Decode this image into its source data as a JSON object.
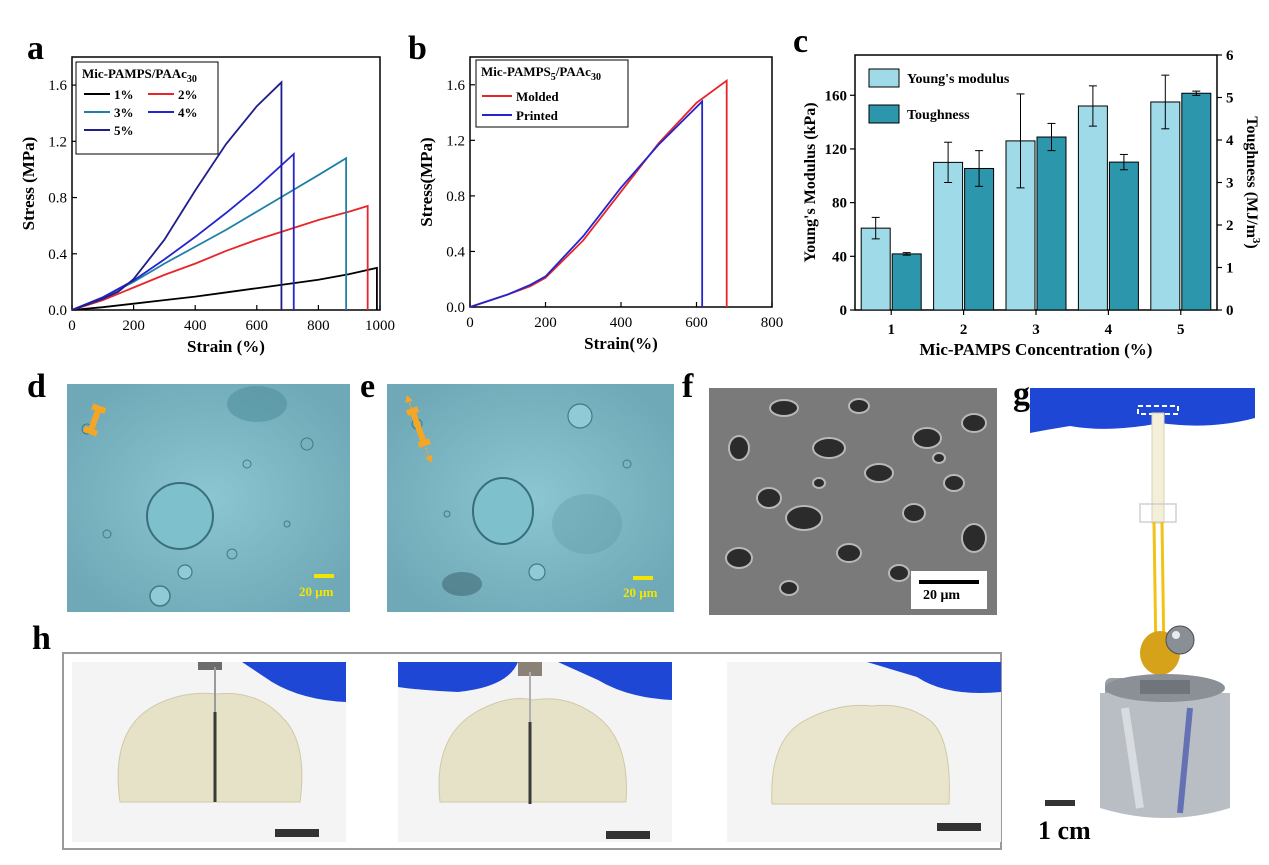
{
  "panels": {
    "a": "a",
    "b": "b",
    "c": "c",
    "d": "d",
    "e": "e",
    "f": "f",
    "g": "g",
    "h": "h"
  },
  "chart_data": [
    {
      "panel": "a",
      "type": "line",
      "xlabel": "Strain (%)",
      "ylabel": "Stress (MPa)",
      "xlim": [
        0,
        1000
      ],
      "ylim": [
        0,
        1.8
      ],
      "xticks": [
        "0",
        "200",
        "400",
        "600",
        "800",
        "1000"
      ],
      "yticks": [
        "0.0",
        "0.4",
        "0.8",
        "1.2",
        "1.6"
      ],
      "legend_title": "Mic-PAMPS/PAAc",
      "legend_title_sub": "30",
      "legend_placement": "top-left",
      "series": [
        {
          "name": "1%",
          "color": "#000000",
          "x": [
            0,
            100,
            200,
            300,
            400,
            500,
            600,
            700,
            800,
            900,
            990
          ],
          "y": [
            0,
            0.02,
            0.045,
            0.07,
            0.095,
            0.125,
            0.155,
            0.185,
            0.215,
            0.255,
            0.3
          ]
        },
        {
          "name": "2%",
          "color": "#e8252a",
          "x": [
            0,
            100,
            200,
            300,
            400,
            500,
            600,
            700,
            800,
            900,
            960
          ],
          "y": [
            0,
            0.07,
            0.16,
            0.25,
            0.33,
            0.42,
            0.5,
            0.57,
            0.64,
            0.7,
            0.74
          ]
        },
        {
          "name": "3%",
          "color": "#1f7fa8",
          "x": [
            0,
            100,
            200,
            300,
            400,
            500,
            600,
            700,
            800,
            890
          ],
          "y": [
            0,
            0.09,
            0.2,
            0.33,
            0.45,
            0.57,
            0.7,
            0.83,
            0.96,
            1.08
          ]
        },
        {
          "name": "4%",
          "color": "#2525d0",
          "x": [
            0,
            100,
            200,
            300,
            400,
            500,
            600,
            700,
            720
          ],
          "y": [
            0,
            0.09,
            0.21,
            0.36,
            0.52,
            0.69,
            0.87,
            1.07,
            1.11
          ]
        },
        {
          "name": "5%",
          "color": "#1e1e8c",
          "x": [
            0,
            100,
            150,
            200,
            300,
            400,
            500,
            600,
            680
          ],
          "y": [
            0,
            0.08,
            0.13,
            0.22,
            0.5,
            0.85,
            1.18,
            1.45,
            1.62
          ]
        }
      ]
    },
    {
      "panel": "b",
      "type": "line",
      "xlabel": "Strain(%)",
      "ylabel": "Stress(MPa)",
      "xlim": [
        0,
        800
      ],
      "ylim": [
        0,
        1.8
      ],
      "xticks": [
        "0",
        "200",
        "400",
        "600",
        "800"
      ],
      "yticks": [
        "0.0",
        "0.4",
        "0.8",
        "1.2",
        "1.6"
      ],
      "legend_title": "Mic-PAMPS",
      "legend_title_sub1": "5",
      "legend_title_mid": "/PAAc",
      "legend_title_sub2": "30",
      "legend_placement": "top-left",
      "series": [
        {
          "name": "Molded",
          "color": "#e8252a",
          "x": [
            0,
            100,
            160,
            200,
            300,
            400,
            500,
            600,
            680
          ],
          "y": [
            0,
            0.09,
            0.15,
            0.21,
            0.48,
            0.83,
            1.18,
            1.47,
            1.63
          ]
        },
        {
          "name": "Printed",
          "color": "#2525d0",
          "x": [
            0,
            100,
            160,
            200,
            300,
            400,
            500,
            615
          ],
          "y": [
            0,
            0.09,
            0.16,
            0.22,
            0.51,
            0.86,
            1.17,
            1.48
          ]
        }
      ]
    },
    {
      "panel": "c",
      "type": "bar",
      "xlabel": "Mic-PAMPS Concentration (%)",
      "ylabel": "Young's Modulus (kPa)",
      "ylabel_right": "Toughness (MJ/m",
      "ylabel_right_sup": "3",
      "ylabel_right_end": ")",
      "categories": [
        "1",
        "2",
        "3",
        "4",
        "5"
      ],
      "ylim": [
        0,
        190
      ],
      "ylim_right": [
        0,
        6
      ],
      "yticks": [
        "0",
        "40",
        "80",
        "120",
        "160"
      ],
      "yticks_right": [
        "0",
        "1",
        "2",
        "3",
        "4",
        "5",
        "6"
      ],
      "legend_placement": "top-left",
      "series": [
        {
          "name": "Young's modulus",
          "color": "#9fdae8",
          "axis": "left",
          "values": [
            61,
            110,
            126,
            152,
            155
          ],
          "errors": [
            8,
            15,
            35,
            15,
            20
          ]
        },
        {
          "name": "Toughness",
          "color": "#2b96ac",
          "axis": "right",
          "values": [
            1.32,
            3.33,
            4.07,
            3.48,
            5.1
          ],
          "errors": [
            0.03,
            0.42,
            0.32,
            0.18,
            0.05
          ]
        }
      ]
    }
  ],
  "micrographs": {
    "d_scale": "20 μm",
    "e_scale": "20 μm",
    "f_scale": "20 μm"
  },
  "photos": {
    "g_scale": "1 cm"
  },
  "colors": {
    "micrograph_bg": "#82bfcb",
    "sem_bg": "#6e6e6e",
    "glove_blue": "#1f47d6",
    "gel": "#e9e6cf",
    "weight": "#b9bec4",
    "scale_yellow": "#f2e600"
  }
}
